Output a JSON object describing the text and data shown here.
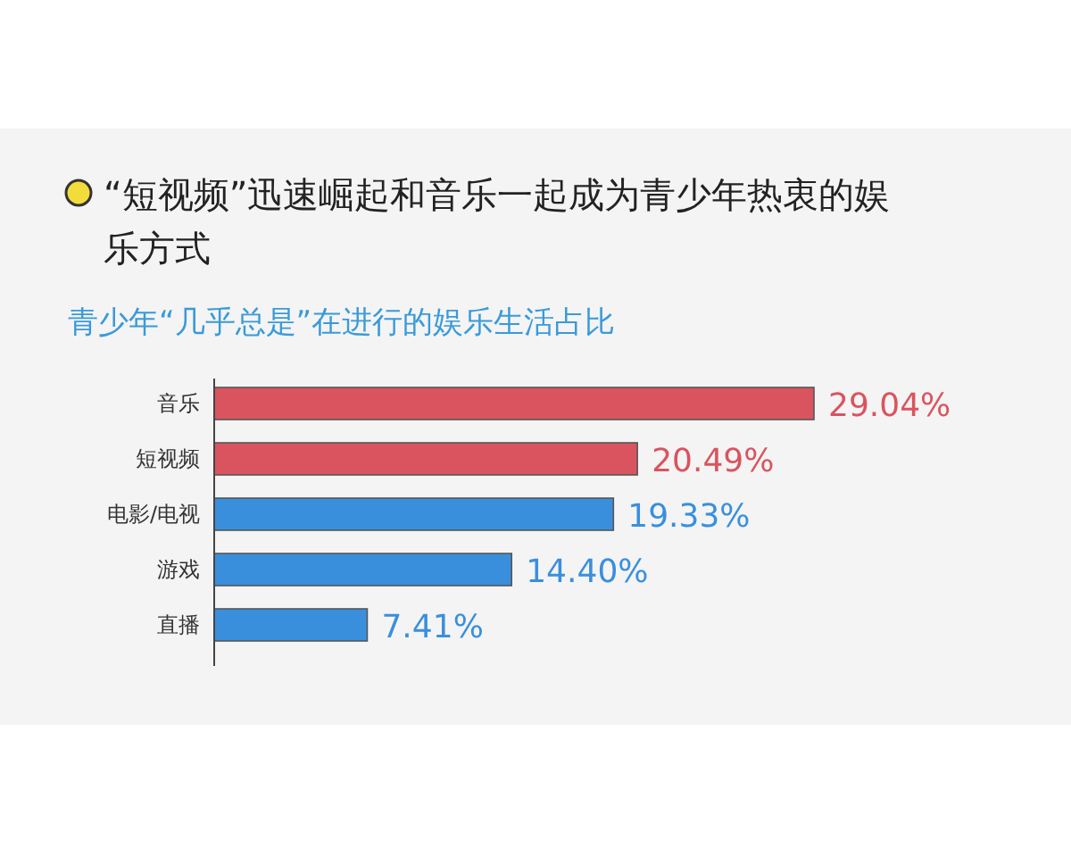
{
  "chart_data": {
    "type": "bar",
    "orientation": "horizontal",
    "title": "“短视频”迅速崛起和音乐一起成为青少年热衷的娱乐方式",
    "subtitle": "青少年“几乎总是”在进行的娱乐生活占比",
    "categories": [
      "音乐",
      "短视频",
      "电影/电视",
      "游戏",
      "直播"
    ],
    "values": [
      29.04,
      20.49,
      19.33,
      14.4,
      7.41
    ],
    "colors": [
      "#d9545f",
      "#d9545f",
      "#3a8fdc",
      "#3a8fdc",
      "#3a8fdc"
    ],
    "value_labels": [
      "29.04%",
      "20.49%",
      "19.33%",
      "14.40%",
      "7.41%"
    ]
  }
}
